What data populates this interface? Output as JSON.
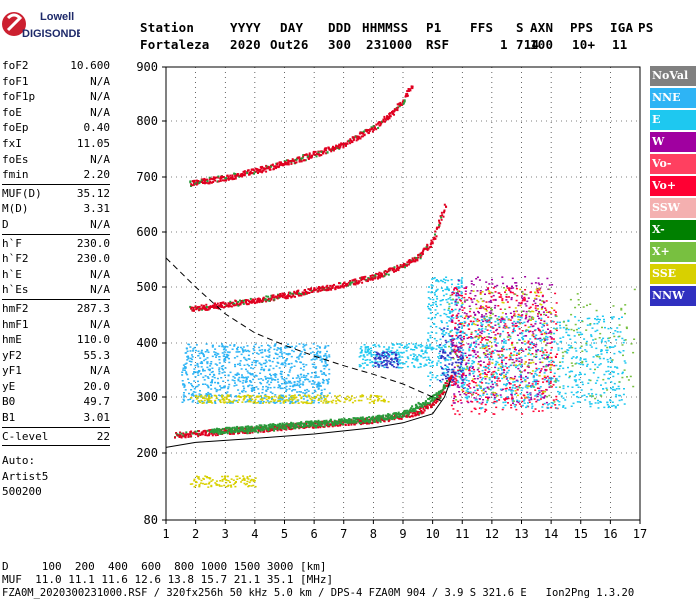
{
  "logo": {
    "line1": "Lowell",
    "line2": "DIGISONDE"
  },
  "header": {
    "labels": [
      "Station",
      "YYYY",
      "DAY",
      "DDD",
      "HHMMSS",
      "P1",
      "FFS",
      "S",
      "AXN",
      "PPS",
      "IGA",
      "PS"
    ],
    "values": [
      "Fortaleza",
      "2020",
      "Out26",
      "300",
      "231000",
      "RSF",
      "1",
      "714",
      "100",
      "10+",
      "11"
    ]
  },
  "params_group1": [
    {
      "name": "foF2",
      "value": "10.600"
    },
    {
      "name": "foF1",
      "value": "N/A"
    },
    {
      "name": "foF1p",
      "value": "N/A"
    },
    {
      "name": "foE",
      "value": "N/A"
    },
    {
      "name": "foEp",
      "value": "0.40"
    },
    {
      "name": "fxI",
      "value": "11.05"
    },
    {
      "name": "foEs",
      "value": "N/A"
    },
    {
      "name": "fmin",
      "value": "2.20"
    }
  ],
  "params_group2": [
    {
      "name": "MUF(D)",
      "value": "35.12"
    },
    {
      "name": "M(D)",
      "value": "3.31"
    },
    {
      "name": "D",
      "value": "N/A"
    }
  ],
  "params_group3": [
    {
      "name": "h`F",
      "value": "230.0"
    },
    {
      "name": "h`F2",
      "value": "230.0"
    },
    {
      "name": "h`E",
      "value": "N/A"
    },
    {
      "name": "h`Es",
      "value": "N/A"
    }
  ],
  "params_group4": [
    {
      "name": "hmF2",
      "value": "287.3"
    },
    {
      "name": "hmF1",
      "value": "N/A"
    },
    {
      "name": "hmE",
      "value": "110.0"
    },
    {
      "name": "yF2",
      "value": "55.3"
    },
    {
      "name": "yF1",
      "value": "N/A"
    },
    {
      "name": "yE",
      "value": "20.0"
    },
    {
      "name": "B0",
      "value": "49.7"
    },
    {
      "name": "B1",
      "value": "3.01"
    }
  ],
  "clevel": {
    "name": "C-level",
    "value": "22"
  },
  "auto": {
    "line1": "Auto:",
    "line2": "Artist5",
    "line3": "500200"
  },
  "footer": {
    "d_row": "D     100  200  400  600  800 1000 1500 3000 [km]",
    "muf_row": "MUF  11.0 11.1 11.6 12.6 13.8 15.7 21.1 35.1 [MHz]",
    "file_row": "FZA0M_2020300231000.RSF / 320fx256h 50 kHz 5.0 km / DPS-4 FZA0M 904 / 3.9 S 321.6 E   Ion2Png 1.3.20"
  },
  "legend": [
    {
      "label": "NoVal",
      "color": "#808080"
    },
    {
      "label": "NNE",
      "color": "#2eb4f5"
    },
    {
      "label": "E",
      "color": "#1ec8f0"
    },
    {
      "label": "W",
      "color": "#a000a0"
    },
    {
      "label": "Vo-",
      "color": "#ff4060"
    },
    {
      "label": "Vo+",
      "color": "#ff0033"
    },
    {
      "label": "SSW",
      "color": "#f4b0b0"
    },
    {
      "label": "X-",
      "color": "#008000"
    },
    {
      "label": "X+",
      "color": "#78c040"
    },
    {
      "label": "SSE",
      "color": "#d8d000"
    },
    {
      "label": "NNW",
      "color": "#3030c0"
    }
  ],
  "chart_data": {
    "type": "scatter",
    "xlabel": "",
    "ylabel": "",
    "xlim": [
      1,
      17
    ],
    "ylim": [
      80,
      900
    ],
    "x_ticks": [
      "1",
      "2",
      "3",
      "4",
      "5",
      "6",
      "7",
      "8",
      "9",
      "10",
      "11",
      "12",
      "13",
      "14",
      "15",
      "16",
      "17"
    ],
    "y_ticks": [
      "80",
      "200",
      "300",
      "400",
      "500",
      "600",
      "700",
      "800",
      "900"
    ],
    "traces": [
      {
        "name": "o-trace 1st hop",
        "color": "#e00020",
        "x": [
          1.3,
          2.0,
          3.0,
          4.0,
          5.0,
          6.0,
          7.0,
          8.0,
          9.0,
          9.5,
          10.0,
          10.3,
          10.6
        ],
        "y": [
          233,
          236,
          240,
          243,
          248,
          252,
          256,
          260,
          268,
          275,
          290,
          310,
          340
        ]
      },
      {
        "name": "o-trace 2nd hop",
        "color": "#e00020",
        "x": [
          1.8,
          3.0,
          4.0,
          5.0,
          6.0,
          7.0,
          8.0,
          9.0,
          9.5,
          10.0,
          10.4
        ],
        "y": [
          462,
          470,
          478,
          486,
          496,
          506,
          520,
          540,
          556,
          585,
          650
        ]
      },
      {
        "name": "o-trace 3rd hop",
        "color": "#e00020",
        "x": [
          1.8,
          3.0,
          4.0,
          5.0,
          6.0,
          7.0,
          8.0,
          8.5,
          9.0,
          9.3
        ],
        "y": [
          690,
          700,
          712,
          726,
          742,
          760,
          790,
          810,
          840,
          870
        ]
      },
      {
        "name": "x-trace",
        "color": "#2a9a3a",
        "x": [
          2.5,
          4.0,
          6.0,
          8.0,
          9.0,
          10.0,
          10.4
        ],
        "y": [
          240,
          246,
          254,
          262,
          272,
          300,
          320
        ]
      }
    ],
    "curves": [
      {
        "name": "profile",
        "style": "solid",
        "x": [
          1.0,
          2.0,
          4.0,
          6.0,
          8.0,
          9.0,
          10.0,
          10.4,
          10.6
        ],
        "y": [
          210,
          219,
          226,
          234,
          245,
          254,
          270,
          300,
          330
        ]
      },
      {
        "name": "MUF",
        "style": "dashed",
        "x": [
          1.0,
          2.0,
          3.0,
          4.0,
          5.0,
          6.0,
          7.0,
          8.0,
          9.0,
          10.0,
          10.4
        ],
        "y": [
          553,
          500,
          452,
          418,
          396,
          376,
          358,
          342,
          324,
          300,
          290
        ]
      }
    ],
    "clusters": [
      {
        "name": "spread-F",
        "color": "#2eb4f5",
        "x": [
          1.5,
          6.5
        ],
        "y": [
          290,
          400
        ],
        "n": 900
      },
      {
        "name": "spread-F high",
        "color": "#1ec8f0",
        "x": [
          7.5,
          10.0
        ],
        "y": [
          355,
          400
        ],
        "n": 220
      },
      {
        "name": "spread-F upper",
        "color": "#1ec8f0",
        "x": [
          9.8,
          11.0
        ],
        "y": [
          320,
          520
        ],
        "n": 300
      },
      {
        "name": "Es yellow",
        "color": "#d8d000",
        "x": [
          1.8,
          8.5
        ],
        "y": [
          290,
          305
        ],
        "n": 260
      },
      {
        "name": "Es low",
        "color": "#d8d000",
        "x": [
          1.8,
          4.0
        ],
        "y": [
          140,
          160
        ],
        "n": 110
      },
      {
        "name": "NNW blob",
        "color": "#3030c0",
        "x": [
          8.0,
          8.8
        ],
        "y": [
          355,
          385
        ],
        "n": 70
      },
      {
        "name": "W scatter",
        "color": "#a000a0",
        "x": [
          10.6,
          14.0
        ],
        "y": [
          290,
          520
        ],
        "n": 500
      },
      {
        "name": "Vo scatter",
        "color": "#ff0033",
        "x": [
          10.6,
          14.2
        ],
        "y": [
          270,
          500
        ],
        "n": 450
      },
      {
        "name": "E scatter",
        "color": "#1ec8f0",
        "x": [
          11.0,
          16.5
        ],
        "y": [
          280,
          450
        ],
        "n": 700
      },
      {
        "name": "NNW scatter",
        "color": "#3030c0",
        "x": [
          10.2,
          11.0
        ],
        "y": [
          330,
          430
        ],
        "n": 90
      },
      {
        "name": "X+ scatter",
        "color": "#78c040",
        "x": [
          10.5,
          16.8
        ],
        "y": [
          290,
          500
        ],
        "n": 180
      },
      {
        "name": "SSE scatter",
        "color": "#d8d000",
        "x": [
          10.8,
          14.0
        ],
        "y": [
          300,
          500
        ],
        "n": 120
      }
    ]
  }
}
